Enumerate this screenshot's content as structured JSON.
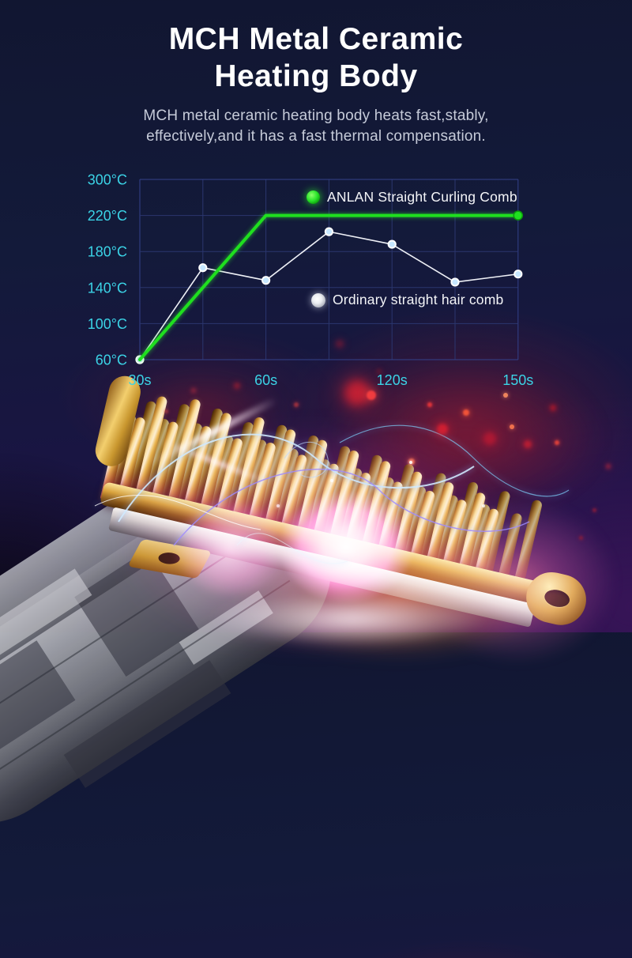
{
  "header": {
    "title_line1": "MCH Metal Ceramic",
    "title_line2": "Heating Body",
    "subtitle_line1": "MCH metal ceramic heating body heats fast,stably,",
    "subtitle_line2": "effectively,and it has a fast thermal compensation."
  },
  "colors": {
    "background_navy": "#131a3a",
    "background_purple": "#2a1148",
    "title_white": "#ffffff",
    "subtitle_gray": "#c6cbd9",
    "axis_label_cyan": "#3bd3e6",
    "grid_blue": "#2b366e",
    "anlan_green": "#1fdf1f",
    "ordinary_white": "#eef0f6",
    "glow_magenta": "#ff3fa0",
    "comb_gold": "#d9a23c"
  },
  "chart_data": {
    "type": "line",
    "title": "",
    "x_axis": {
      "tick_labels": [
        "30s",
        "60s",
        "120s",
        "150s"
      ],
      "tick_gridline_indices": [
        0,
        2,
        4,
        6
      ],
      "gridline_count": 7
    },
    "y_axis": {
      "tick_labels": [
        "300°C",
        "220°C",
        "180°C",
        "140°C",
        "100°C",
        "60°C"
      ],
      "tick_values": [
        300,
        220,
        180,
        140,
        100,
        60
      ]
    },
    "series": [
      {
        "name": "ANLAN Straight Curling Comb",
        "color": "#1fdf1f",
        "marker": "end-dot",
        "values": [
          60,
          140,
          220,
          220,
          220,
          220,
          220
        ]
      },
      {
        "name": "Ordinary straight hair comb",
        "color": "#eef0f6",
        "marker": "all-dots",
        "values": [
          60,
          162,
          148,
          202,
          188,
          146,
          155
        ]
      }
    ],
    "legend": [
      {
        "label": "ANLAN Straight Curling Comb",
        "marker_color": "#2ce52c"
      },
      {
        "label": "Ordinary straight hair comb",
        "marker_color": "#d9dce2"
      }
    ],
    "layout": {
      "grid": true,
      "legend_position": "inside-top-right"
    }
  }
}
